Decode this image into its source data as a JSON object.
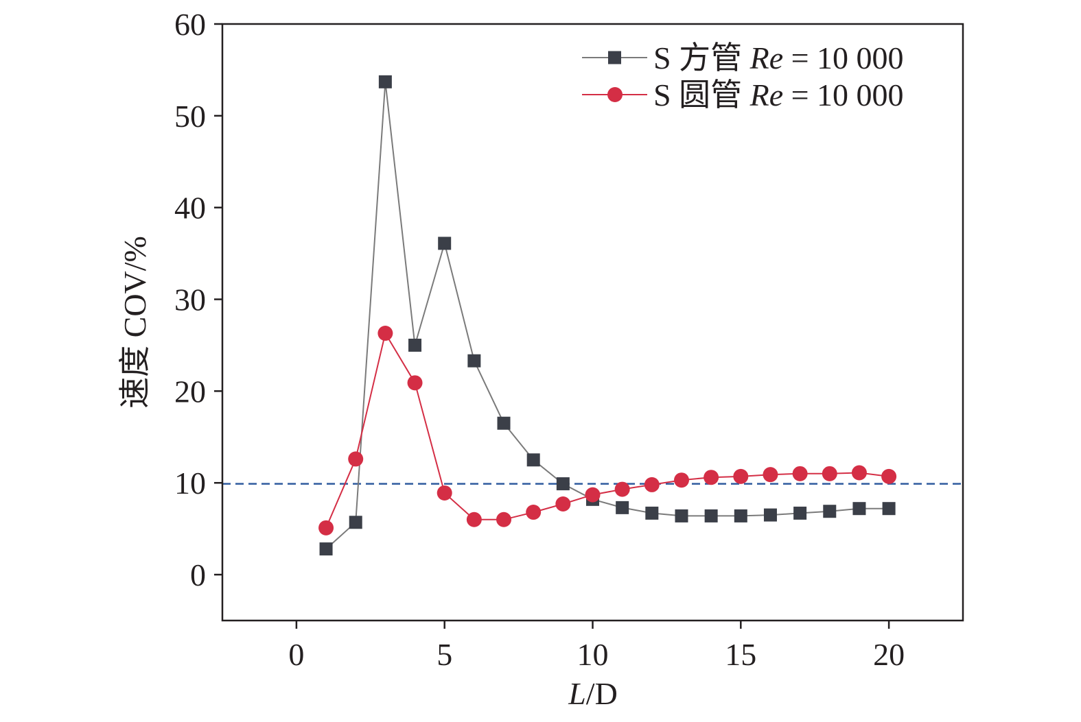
{
  "chart_data": {
    "type": "line",
    "title": "",
    "xlabel": {
      "italic": "L",
      "normal": "/D"
    },
    "ylabel": "速度 COV/%",
    "xlim": [
      -2.5,
      22.5
    ],
    "ylim": [
      -5,
      60
    ],
    "x_ticks": [
      0,
      5,
      10,
      15,
      20
    ],
    "y_ticks": [
      0,
      10,
      20,
      30,
      40,
      50,
      60
    ],
    "x_tick_labels": [
      "0",
      "5",
      "10",
      "15",
      "20"
    ],
    "y_tick_labels": [
      "0",
      "10",
      "20",
      "30",
      "40",
      "50",
      "60"
    ],
    "x": [
      1,
      2,
      3,
      4,
      5,
      6,
      7,
      8,
      9,
      10,
      11,
      12,
      13,
      14,
      15,
      16,
      17,
      18,
      19,
      20
    ],
    "series": [
      {
        "name": "S 方管 Re = 10 000",
        "legend_prefix": "S 方管 ",
        "legend_italic": "Re",
        "legend_suffix": " = 10 000",
        "marker": "square",
        "line_color": "#7a7a7a",
        "marker_color": "#3b3f48",
        "values": [
          2.8,
          5.7,
          53.7,
          25.0,
          36.1,
          23.3,
          16.5,
          12.5,
          9.9,
          8.2,
          7.3,
          6.7,
          6.4,
          6.4,
          6.4,
          6.5,
          6.7,
          6.9,
          7.2,
          7.2
        ]
      },
      {
        "name": "S 圆管 Re = 10 000",
        "legend_prefix": "S 圆管 ",
        "legend_italic": "Re",
        "legend_suffix": " = 10 000",
        "marker": "circle",
        "line_color": "#d42e45",
        "marker_color": "#d42e45",
        "values": [
          5.1,
          12.6,
          26.3,
          20.9,
          8.9,
          6.0,
          6.0,
          6.8,
          7.7,
          8.7,
          9.3,
          9.8,
          10.3,
          10.6,
          10.7,
          10.9,
          11.0,
          11.0,
          11.1,
          10.7
        ]
      }
    ],
    "reference_line": {
      "y": 9.9,
      "style": "dashed",
      "color": "#2e5b9e"
    },
    "legend_position": "top-right",
    "grid": false
  }
}
